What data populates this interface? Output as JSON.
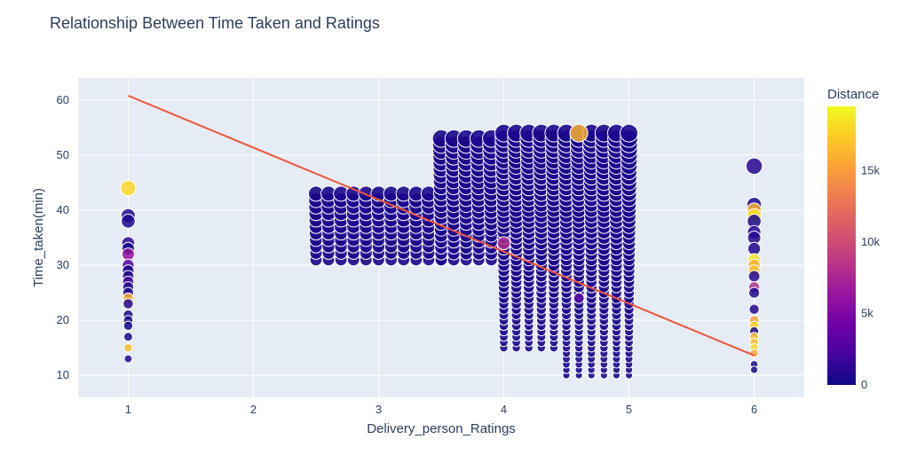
{
  "chart_data": {
    "type": "scatter",
    "title": "Relationship Between Time Taken and Ratings",
    "xlabel": "Delivery_person_Ratings",
    "ylabel": "Time_taken(min)",
    "xlim": [
      0.6,
      6.4
    ],
    "ylim": [
      6,
      64
    ],
    "x_ticks": [
      1,
      2,
      3,
      4,
      5,
      6
    ],
    "y_ticks": [
      10,
      20,
      30,
      40,
      50,
      60
    ],
    "grid": true,
    "colorbar": {
      "title": "Distance",
      "range": [
        0,
        19500
      ],
      "ticks": [
        0,
        5000,
        10000,
        15000
      ],
      "tick_labels": [
        "0",
        "5k",
        "10k",
        "15k"
      ],
      "colorscale": [
        "#0d0887",
        "#46039f",
        "#7201a8",
        "#9c179e",
        "#bd3786",
        "#d8576b",
        "#ed7953",
        "#fb9f3a",
        "#fdca26",
        "#f0f921"
      ]
    },
    "trendline": {
      "color": "#ef553b",
      "points": [
        [
          1,
          60.8
        ],
        [
          6,
          13.6
        ]
      ]
    },
    "background_color": "#e5ecf6",
    "series": [
      {
        "note_points": "representative sample of dense scatter; [x, y, distance]",
        "points": [
          [
            1,
            44,
            18000
          ],
          [
            1,
            39,
            800
          ],
          [
            1,
            38,
            600
          ],
          [
            1,
            34,
            1200
          ],
          [
            1,
            33,
            400
          ],
          [
            1,
            32,
            6000
          ],
          [
            1,
            30,
            3000
          ],
          [
            1,
            29,
            500
          ],
          [
            1,
            28,
            800
          ],
          [
            1,
            27,
            2000
          ],
          [
            1,
            26,
            700
          ],
          [
            1,
            25,
            500
          ],
          [
            1,
            24,
            16000
          ],
          [
            1,
            23,
            900
          ],
          [
            1,
            21,
            400
          ],
          [
            1,
            20,
            600
          ],
          [
            1,
            19,
            300
          ],
          [
            1,
            17,
            500
          ],
          [
            1,
            15,
            16500
          ],
          [
            1,
            13,
            800
          ],
          [
            6,
            48,
            1000
          ],
          [
            6,
            41,
            600
          ],
          [
            6,
            40,
            16000
          ],
          [
            6,
            39,
            18000
          ],
          [
            6,
            38,
            500
          ],
          [
            6,
            36,
            800
          ],
          [
            6,
            35,
            900
          ],
          [
            6,
            33,
            700
          ],
          [
            6,
            31,
            18500
          ],
          [
            6,
            30,
            16000
          ],
          [
            6,
            29,
            17000
          ],
          [
            6,
            28,
            900
          ],
          [
            6,
            26,
            8000
          ],
          [
            6,
            25,
            600
          ],
          [
            6,
            22,
            800
          ],
          [
            6,
            20,
            15000
          ],
          [
            6,
            19,
            17500
          ],
          [
            6,
            18,
            400
          ],
          [
            6,
            17,
            16500
          ],
          [
            6,
            16,
            17000
          ],
          [
            6,
            15,
            18000
          ],
          [
            6,
            14,
            15500
          ],
          [
            6,
            12,
            500
          ],
          [
            6,
            11,
            300
          ],
          [
            4,
            34,
            8000
          ],
          [
            4.6,
            54,
            16000
          ],
          [
            4.6,
            24,
            3000
          ]
        ]
      }
    ]
  }
}
